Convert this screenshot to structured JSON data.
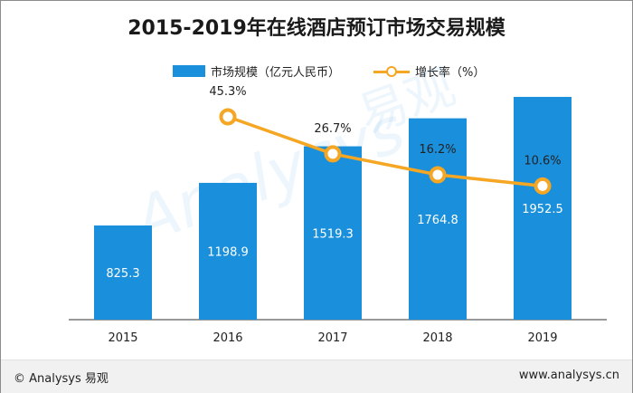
{
  "chart_data": {
    "type": "bar",
    "title": "2015-2019年在线酒店预订市场交易规模",
    "categories": [
      "2015",
      "2016",
      "2017",
      "2018",
      "2019"
    ],
    "series": [
      {
        "name": "市场规模（亿元人民币）",
        "type": "bar",
        "values": [
          825.3,
          1198.9,
          1519.3,
          1764.8,
          1952.5
        ],
        "labels": [
          "825.3",
          "1198.9",
          "1519.3",
          "1764.8",
          "1952.5"
        ]
      },
      {
        "name": "增长率（%）",
        "type": "line",
        "values": [
          null,
          45.3,
          26.7,
          16.2,
          10.6
        ],
        "labels": [
          "",
          "45.3%",
          "26.7%",
          "16.2%",
          "10.6%"
        ]
      }
    ],
    "bar_color": "#1a8fdc",
    "line_color": "#f5a623",
    "legend_position": "top"
  },
  "watermark": {
    "text_en": "Analysys",
    "text_cn": "易观"
  },
  "footer": {
    "left": "© Analysys 易观",
    "right": "www.analysys.cn"
  }
}
